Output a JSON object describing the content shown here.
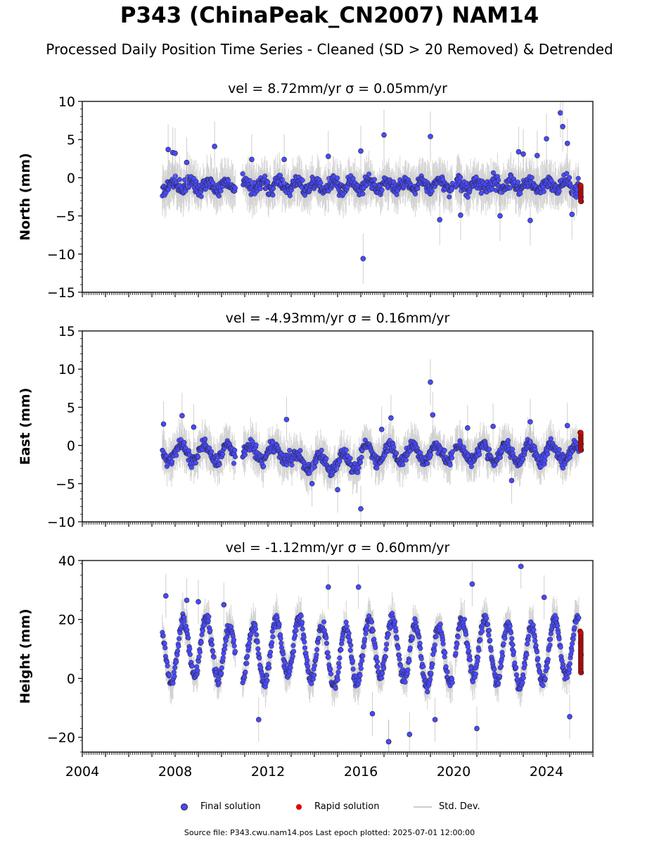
{
  "title": "P343 (ChinaPeak_CN2007) NAM14",
  "subtitle": "Processed Daily Position Time Series - Cleaned (SD > 20 Removed) & Detrended",
  "legend": {
    "final": "Final solution",
    "rapid": "Rapid solution",
    "stddev": "Std. Dev."
  },
  "footer": "Source file: P343.cwu.nam14.pos  Last epoch plotted: 2025-07-01 12:00:00",
  "colors": {
    "final": "#4a4aff",
    "rapid": "#e00000",
    "stddev": "#b0b0b0",
    "marker_edge": "#222222"
  },
  "chart_data": [
    {
      "type": "scatter",
      "title": "vel = 8.72mm/yr   σ = 0.05mm/yr",
      "ylabel": "North (mm)",
      "ylim": [
        -15,
        10
      ],
      "yticks": [
        -15,
        -10,
        -5,
        0,
        5,
        10
      ],
      "xlim": [
        2004,
        2026
      ],
      "xticks": [
        2004,
        2008,
        2012,
        2016,
        2020,
        2024
      ],
      "show_xtick_labels": false,
      "series": [
        {
          "name": "Final solution",
          "x": [
            2007.7,
            2007.9,
            2008.0,
            2008.5,
            2009.7,
            2011.3,
            2012.7,
            2014.6,
            2016.0,
            2016.1,
            2017.0,
            2019.0,
            2019.4,
            2020.3,
            2022.0,
            2022.8,
            2023.0,
            2023.3,
            2023.6,
            2024.0,
            2024.6,
            2024.7,
            2024.9,
            2025.1
          ],
          "y": [
            3.7,
            3.3,
            3.2,
            2.0,
            4.1,
            2.4,
            2.4,
            2.8,
            3.5,
            -10.6,
            5.6,
            5.4,
            -5.5,
            -4.9,
            -5.0,
            3.4,
            3.1,
            -5.6,
            2.9,
            5.1,
            8.5,
            6.7,
            4.5,
            -4.8
          ]
        },
        {
          "name": "Rapid solution",
          "x": [
            2025.45,
            2025.47,
            2025.49,
            2025.5
          ],
          "y": [
            -1.0,
            -1.8,
            -2.5,
            -3.1
          ]
        }
      ]
    },
    {
      "type": "scatter",
      "title": "vel = -4.93mm/yr   σ = 0.16mm/yr",
      "ylabel": "East (mm)",
      "ylim": [
        -10,
        15
      ],
      "yticks": [
        -10,
        -5,
        0,
        5,
        10,
        15
      ],
      "xlim": [
        2004,
        2026
      ],
      "xticks": [
        2004,
        2008,
        2012,
        2016,
        2020,
        2024
      ],
      "show_xtick_labels": false,
      "series": [
        {
          "name": "Final solution",
          "x": [
            2007.5,
            2008.3,
            2008.8,
            2012.8,
            2013.9,
            2015.0,
            2016.0,
            2016.9,
            2017.3,
            2019.0,
            2019.1,
            2020.6,
            2021.7,
            2022.5,
            2023.3,
            2024.9
          ],
          "y": [
            2.8,
            3.9,
            2.4,
            3.4,
            -5.0,
            -5.8,
            -8.3,
            2.1,
            3.6,
            8.3,
            4.0,
            2.3,
            2.5,
            -4.6,
            3.1,
            2.6
          ]
        },
        {
          "name": "Rapid solution",
          "x": [
            2025.45,
            2025.47,
            2025.49,
            2025.5
          ],
          "y": [
            1.7,
            1.0,
            0.2,
            -0.6
          ]
        }
      ]
    },
    {
      "type": "scatter",
      "title": "vel = -1.12mm/yr   σ = 0.60mm/yr",
      "ylabel": "Height (mm)",
      "ylim": [
        -25,
        40
      ],
      "yticks": [
        -20,
        0,
        20,
        40
      ],
      "xlim": [
        2004,
        2026
      ],
      "xticks": [
        2004,
        2008,
        2012,
        2016,
        2020,
        2024
      ],
      "show_xtick_labels": true,
      "series": [
        {
          "name": "Final solution",
          "x": [
            2007.6,
            2008.5,
            2009.0,
            2010.1,
            2011.6,
            2014.6,
            2015.9,
            2016.5,
            2017.2,
            2017.2,
            2018.1,
            2019.2,
            2020.8,
            2021.0,
            2022.9,
            2023.9,
            2025.0
          ],
          "y": [
            28.0,
            26.5,
            26.0,
            25.0,
            -14.0,
            31.0,
            31.0,
            -12.0,
            -21.5,
            -21.5,
            -19.0,
            -14.0,
            32.0,
            -17.0,
            38.0,
            27.5,
            -13.0
          ]
        },
        {
          "name": "Rapid solution",
          "x": [
            2025.45,
            2025.47,
            2025.49,
            2025.5
          ],
          "y": [
            16.0,
            12.0,
            8.0,
            2.0
          ]
        }
      ]
    }
  ]
}
